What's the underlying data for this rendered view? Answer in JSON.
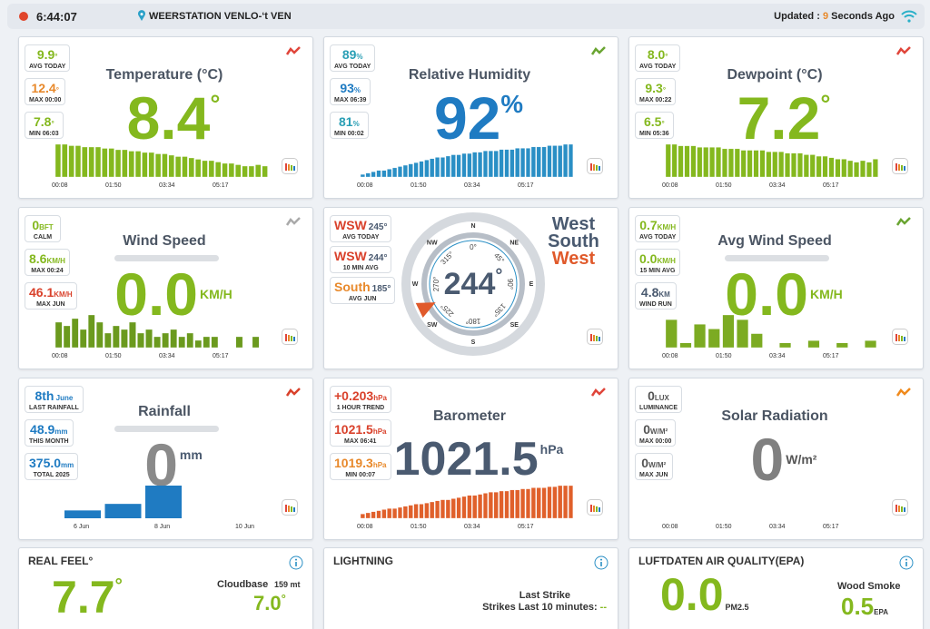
{
  "header": {
    "time": "6:44:07",
    "station": "WEERSTATION VENLO-‘t VEN",
    "updated_prefix": "Updated : ",
    "updated_value": "9",
    "updated_suffix": " Seconds Ago"
  },
  "cards": [
    {
      "kind": "stat",
      "title": "Temperature (°C)",
      "value": "8.4",
      "unit": "°",
      "color": "#84b81e",
      "icon_color": "#e0453a",
      "stats": [
        {
          "value": "9.9",
          "unit": "°",
          "label": "AVG TODAY",
          "color": "#84b81e"
        },
        {
          "value": "12.4",
          "unit": "°",
          "label": "MAX 00:00",
          "color": "#e8892b"
        },
        {
          "value": "7.8",
          "unit": "°",
          "label": "MIN 06:03",
          "color": "#84b81e"
        }
      ],
      "chart": {
        "color": "#84b81e",
        "values": [
          24,
          24,
          23,
          23,
          22,
          22,
          22,
          21,
          21,
          20,
          20,
          19,
          19,
          18,
          18,
          17,
          17,
          16,
          15,
          15,
          14,
          13,
          12,
          12,
          11,
          10,
          10,
          9,
          8,
          8,
          9,
          8
        ],
        "times": [
          "00:08",
          "01:50",
          "03:34",
          "05:17"
        ]
      }
    },
    {
      "kind": "stat",
      "title": "Relative Humidity",
      "value": "92",
      "unit": "%",
      "color": "#1f7bc2",
      "icon_color": "#6aa532",
      "stats": [
        {
          "value": "89",
          "unit": "%",
          "label": "AVG TODAY",
          "color": "#2a9fb5"
        },
        {
          "value": "93",
          "unit": "%",
          "label": "MAX 06:39",
          "color": "#1f7bc2"
        },
        {
          "value": "81",
          "unit": "%",
          "label": "MIN 00:02",
          "color": "#2a9fb5"
        }
      ],
      "chart": {
        "color": "#2a8fc5",
        "values": [
          2,
          3,
          4,
          5,
          5,
          6,
          7,
          8,
          9,
          10,
          11,
          12,
          13,
          14,
          15,
          15,
          16,
          17,
          17,
          18,
          18,
          19,
          19,
          20,
          20,
          20,
          21,
          21,
          21,
          22,
          22,
          22,
          23,
          23,
          23,
          24,
          24,
          24,
          25,
          25
        ],
        "times": [
          "00:08",
          "01:50",
          "03:34",
          "05:17"
        ]
      }
    },
    {
      "kind": "stat",
      "title": "Dewpoint (°C)",
      "value": "7.2",
      "unit": "°",
      "color": "#84b81e",
      "icon_color": "#e0453a",
      "stats": [
        {
          "value": "8.0",
          "unit": "°",
          "label": "AVG TODAY",
          "color": "#84b81e"
        },
        {
          "value": "9.3",
          "unit": "°",
          "label": "MAX 00:22",
          "color": "#84b81e"
        },
        {
          "value": "6.5",
          "unit": "°",
          "label": "MIN 05:36",
          "color": "#84b81e"
        }
      ],
      "chart": {
        "color": "#84b81e",
        "values": [
          22,
          22,
          21,
          21,
          21,
          20,
          20,
          20,
          20,
          19,
          19,
          19,
          18,
          18,
          18,
          18,
          17,
          17,
          17,
          16,
          16,
          16,
          15,
          15,
          14,
          14,
          13,
          12,
          12,
          11,
          10,
          11,
          10,
          12
        ],
        "times": [
          "00:08",
          "01:50",
          "03:34",
          "05:17"
        ]
      }
    },
    {
      "kind": "stat",
      "title": "Wind Speed",
      "title_bar": true,
      "value": "0.0",
      "unit": "KM/H",
      "color": "#84b81e",
      "icon_color": "#aaaaaa",
      "stats": [
        {
          "value": "0",
          "unit": "BFT",
          "label": "CALM",
          "color": "#84b81e"
        },
        {
          "value": "8.6",
          "unit": "KM/H",
          "label": "MAX 00:24",
          "color": "#84b81e"
        },
        {
          "value": "46.1",
          "unit": "KM/H",
          "label": "MAX JUN",
          "color": "#d9412b"
        }
      ],
      "chart": {
        "color": "#6b9a1e",
        "values": [
          14,
          12,
          16,
          10,
          18,
          14,
          8,
          12,
          10,
          14,
          8,
          10,
          6,
          8,
          10,
          6,
          8,
          4,
          6,
          6,
          0,
          0,
          6,
          0,
          6,
          0
        ],
        "times": [
          "00:08",
          "01:50",
          "03:34",
          "05:17"
        ]
      }
    },
    {
      "kind": "compass",
      "direction": 244,
      "unit": "°",
      "color": "#4a5a70",
      "words": [
        {
          "text": "West",
          "color": "#4a5a70"
        },
        {
          "text": "South",
          "color": "#4a5a70"
        },
        {
          "text": "West",
          "color": "#e05a2b"
        }
      ],
      "stats": [
        {
          "value": "WSW",
          "detail": "245°",
          "label": "AVG TODAY",
          "color": "#d9412b"
        },
        {
          "value": "WSW",
          "detail": "244°",
          "label": "10 MIN AVG",
          "color": "#d9412b"
        },
        {
          "value": "South",
          "detail": "185°",
          "label": "AVG JUN",
          "color": "#e8892b"
        }
      ],
      "points": [
        "N",
        "NE",
        "E",
        "SE",
        "S",
        "SW",
        "W",
        "NW"
      ],
      "degrees": [
        "0°",
        "45°",
        "90°",
        "135°",
        "180°",
        "225°",
        "270°",
        "315°"
      ]
    },
    {
      "kind": "stat",
      "title": "Avg Wind Speed",
      "title_bar": true,
      "value": "0.0",
      "unit": "KM/H",
      "color": "#84b81e",
      "icon_color": "#6aa532",
      "stats": [
        {
          "value": "0.7",
          "unit": "KM/H",
          "label": "AVG TODAY",
          "color": "#84b81e"
        },
        {
          "value": "0.0",
          "unit": "KM/H",
          "label": "15 MIN AVG",
          "color": "#84b81e"
        },
        {
          "value": "4.8",
          "unit": "KM",
          "label": "WIND RUN",
          "color": "#4a5a70"
        }
      ],
      "chart": {
        "color": "#7cab22",
        "values": [
          12,
          2,
          10,
          8,
          14,
          12,
          6,
          0,
          2,
          0,
          3,
          0,
          2,
          0,
          3
        ],
        "times": [
          "00:08",
          "01:50",
          "03:34",
          "05:17"
        ]
      }
    },
    {
      "kind": "stat",
      "title": "Rainfall",
      "title_bar": true,
      "value": "0",
      "unit": "mm",
      "color": "#8a8a8a",
      "icon_color": "#d9412b",
      "stats": [
        {
          "value": "8th",
          "unit": " June",
          "label": "LAST RAINFALL",
          "color": "#1f7bc2"
        },
        {
          "value": "48.9",
          "unit": "mm",
          "label": "THIS MONTH",
          "color": "#1f7bc2"
        },
        {
          "value": "375.0",
          "unit": "mm",
          "label": "TOTAL 2025",
          "color": "#1f7bc2"
        }
      ],
      "chart": {
        "color": "#1f7bc2",
        "values": [
          6,
          11,
          25,
          0,
          0
        ],
        "categories": [
          "6 Jun",
          null,
          "8 Jun",
          null,
          "10 Jun"
        ]
      }
    },
    {
      "kind": "stat",
      "title": "Barometer",
      "value": "1021.5",
      "unit": "hPa",
      "color": "#4a5a70",
      "icon_color": "#e0453a",
      "stats": [
        {
          "value": "+0.203",
          "unit": "hPa",
          "label": "1 HOUR TREND",
          "color": "#d9412b"
        },
        {
          "value": "1021.5",
          "unit": "hPa",
          "label": "MAX 06:41",
          "color": "#d9412b"
        },
        {
          "value": "1019.3",
          "unit": "hPa",
          "label": "MIN 00:07",
          "color": "#e8892b"
        }
      ],
      "chart": {
        "color": "#e0602b",
        "values": [
          4,
          5,
          6,
          7,
          8,
          9,
          9,
          10,
          11,
          12,
          13,
          13,
          14,
          15,
          16,
          17,
          17,
          18,
          19,
          20,
          21,
          21,
          22,
          23,
          24,
          24,
          25,
          25,
          26,
          26,
          27,
          27,
          28,
          28,
          28,
          29,
          29,
          30,
          30,
          30
        ],
        "times": [
          "00:08",
          "01:50",
          "03:34",
          "05:17"
        ]
      }
    },
    {
      "kind": "stat",
      "title": "Solar Radiation",
      "value": "0",
      "unit": "W/m²",
      "color": "#808080",
      "icon_color": "#f08a1c",
      "stats": [
        {
          "value": "0",
          "unit": "LUX",
          "label": "LUMINANCE",
          "color": "#555555"
        },
        {
          "value": "0",
          "unit": "W/M²",
          "label": "MAX 00:00",
          "color": "#555555"
        },
        {
          "value": "0",
          "unit": "W/M²",
          "label": "MAX JUN",
          "color": "#555555"
        }
      ],
      "chart": {
        "color": "#f08a1c",
        "values": [],
        "times": [
          "00:08",
          "01:50",
          "03:34",
          "05:17"
        ]
      }
    },
    {
      "kind": "realfeel",
      "title": "REAL FEEL°",
      "value": "7.7",
      "unit": "°",
      "color": "#84b81e",
      "side_label": "Cloudbase",
      "side_detail": "159 mt",
      "side_value": "7.0",
      "side_unit": "°"
    },
    {
      "kind": "lightning",
      "title": "LIGHTNING",
      "lines": [
        "Last Strike",
        "Strikes Last 10 minutes: "
      ],
      "strikes": "--",
      "strikes_color": "#84b81e"
    },
    {
      "kind": "air",
      "title": "LUFTDATEN AIR QUALITY(EPA)",
      "value": "0.0",
      "unit": "PM2.5",
      "color": "#84b81e",
      "side_label": "Wood Smoke",
      "side_value": "0.5",
      "side_unit": "EPA"
    }
  ]
}
